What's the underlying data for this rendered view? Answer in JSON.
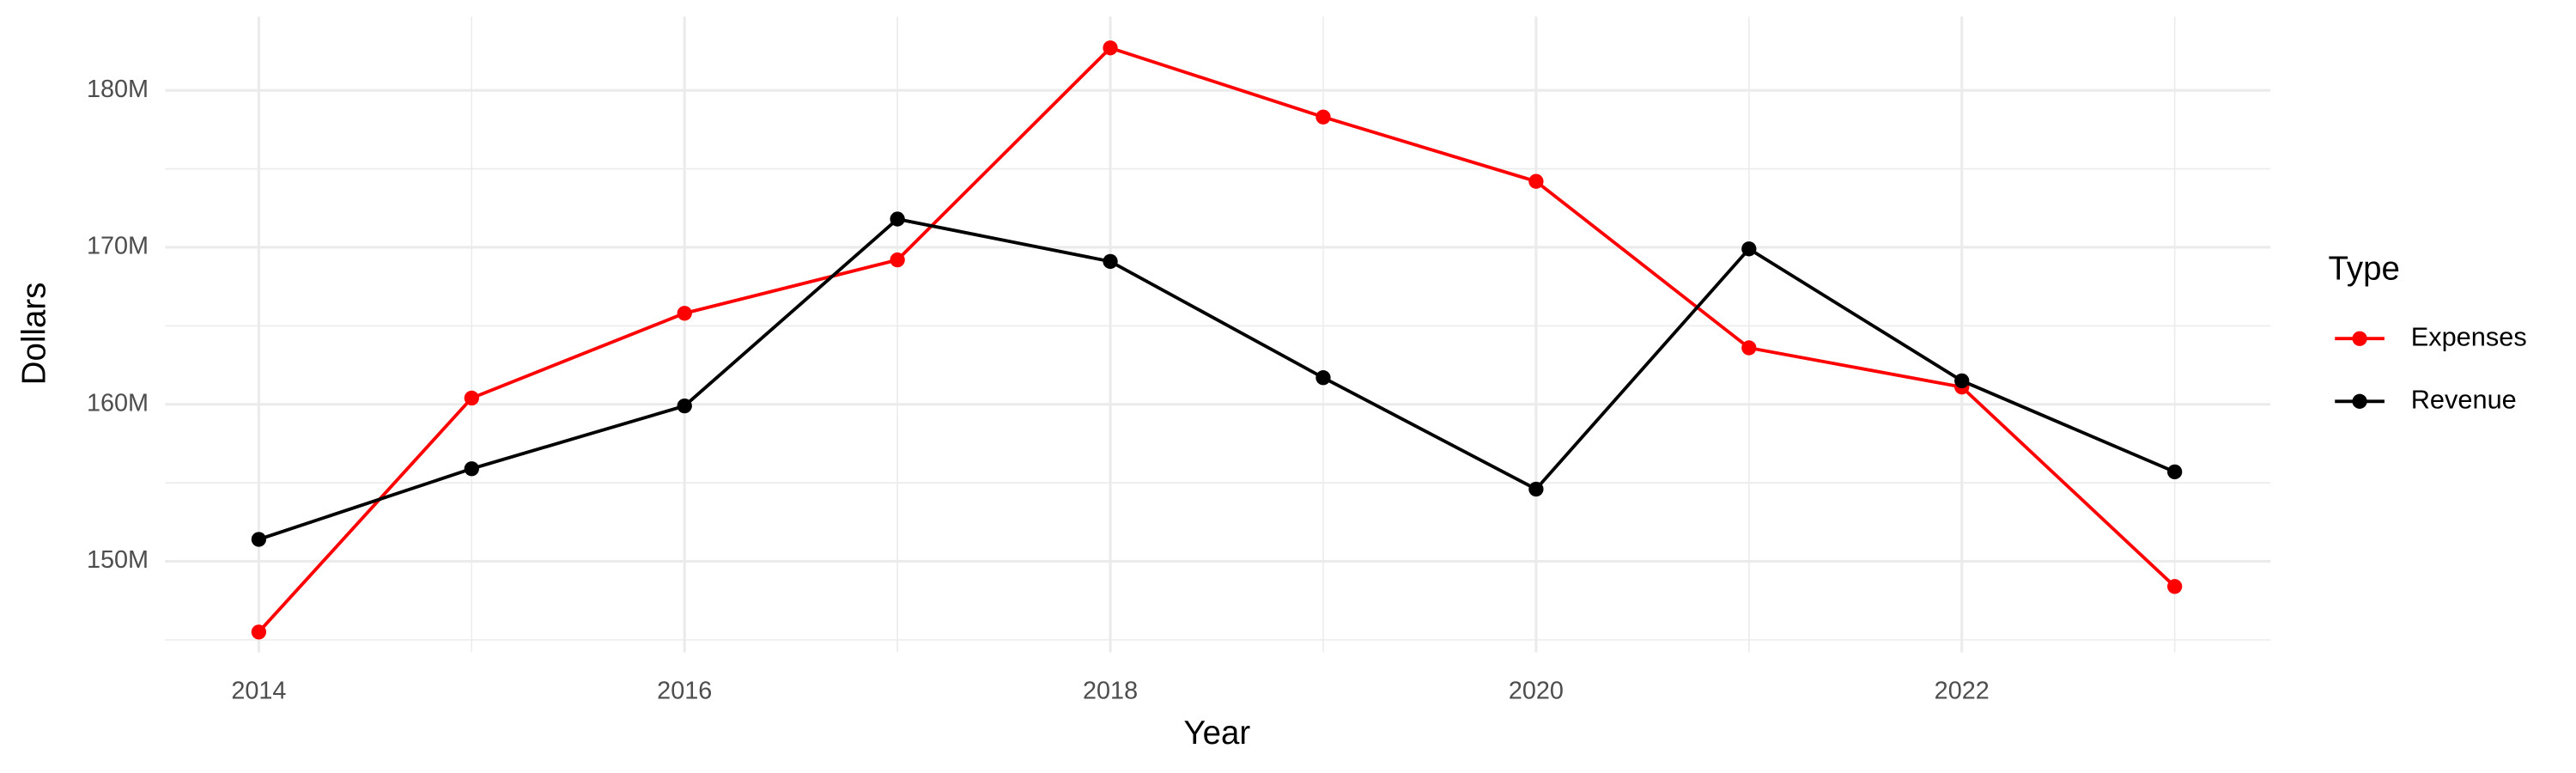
{
  "chart_data": {
    "type": "line",
    "x_label": "Year",
    "y_label": "Dollars",
    "legend_title": "Type",
    "x": [
      2014,
      2015,
      2016,
      2017,
      2018,
      2019,
      2020,
      2021,
      2022,
      2023
    ],
    "series": [
      {
        "name": "Expenses",
        "color": "#ff0000",
        "values": [
          145500000,
          160400000,
          165800000,
          169200000,
          182700000,
          178300000,
          174200000,
          163600000,
          161100000,
          148400000
        ]
      },
      {
        "name": "Revenue",
        "color": "#000000",
        "values": [
          151400000,
          155900000,
          159900000,
          171800000,
          169100000,
          161700000,
          154600000,
          169900000,
          161500000,
          155700000
        ]
      }
    ],
    "xlim": [
      2013.56,
      2023.45
    ],
    "xticks": [
      2014,
      2016,
      2018,
      2020,
      2022
    ],
    "ylim": [
      144200000,
      184700000
    ],
    "yticks": [
      {
        "value": 150000000,
        "label": "150M"
      },
      {
        "value": 160000000,
        "label": "160M"
      },
      {
        "value": 170000000,
        "label": "170M"
      },
      {
        "value": 180000000,
        "label": "180M"
      }
    ],
    "grid": true,
    "legend": "right"
  }
}
